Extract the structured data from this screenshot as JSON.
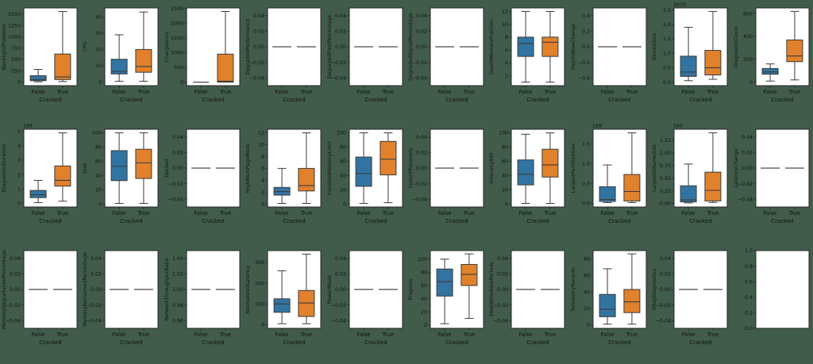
{
  "figure": {
    "xlabel": "Cracked",
    "categories": [
      "False",
      "True"
    ],
    "background": "#415C4B",
    "axes_background": "#FFFFFF",
    "frame_color": "#262626",
    "box_color_false": "#3274A1",
    "box_color_true": "#E1812C",
    "edge_color": "#3B3B3B",
    "flat_line_color": "#4A4A4A",
    "rows": 3,
    "cols": 10
  },
  "chart_data": {
    "type": "box",
    "group_by": "Cracked",
    "groups": [
      "False",
      "True"
    ],
    "legend_position": "none",
    "grid": "off",
    "subplots": [
      {
        "ylabel": "BacklightProblems",
        "offset": "",
        "kind": "box",
        "ytick_vals": [
          0,
          250,
          500,
          750,
          1000,
          1250,
          1500
        ],
        "ytick_labels": [
          "0",
          "250",
          "500",
          "750",
          "1000",
          "1250",
          "1500"
        ],
        "ylim": [
          -80,
          1640
        ],
        "false": {
          "whislo": 5,
          "q1": 30,
          "med": 55,
          "q3": 140,
          "whishi": 280
        },
        "true": {
          "whislo": 10,
          "q1": 55,
          "med": 115,
          "q3": 620,
          "whishi": 1560
        }
      },
      {
        "ylabel": "CPU",
        "offset": "",
        "kind": "box",
        "ytick_vals": [
          0,
          10,
          20,
          30,
          40
        ],
        "ytick_labels": [
          "0",
          "10",
          "20",
          "30",
          "40"
        ],
        "ylim": [
          -2.2,
          45.5
        ],
        "false": {
          "whislo": 0.5,
          "q1": 5,
          "med": 6.5,
          "q3": 14,
          "whishi": 29
        },
        "true": {
          "whislo": 0.5,
          "q1": 6,
          "med": 9.5,
          "q3": 20,
          "whishi": 43
        }
      },
      {
        "ylabel": "ChargeUnits",
        "offset": "",
        "kind": "box",
        "ytick_vals": [
          0,
          500,
          1000,
          1500,
          2000,
          2500
        ],
        "ytick_labels": [
          "0",
          "500",
          "1000",
          "1500",
          "2000",
          "2500"
        ],
        "ylim": [
          -120,
          2520
        ],
        "false": {
          "whislo": 0,
          "q1": 0,
          "med": 0,
          "q3": 0,
          "whishi": 0
        },
        "true": {
          "whislo": 0,
          "q1": 0,
          "med": 30,
          "q3": 950,
          "whishi": 2400
        }
      },
      {
        "ylabel": "DegradedPerformance",
        "offset": "",
        "kind": "flat",
        "flat": 0,
        "ytick_vals": [
          0.04,
          0.02,
          0,
          -0.02,
          -0.04
        ],
        "ytick_labels": [
          "0.04",
          "0.02",
          "0.00",
          "−0.02",
          "−0.04"
        ],
        "ylim": [
          -0.05,
          0.05
        ]
      },
      {
        "ylabel": "DegradedPixelPercentage",
        "offset": "",
        "kind": "flat",
        "flat": 0,
        "ytick_vals": [
          0.04,
          0.02,
          0,
          -0.02,
          -0.04
        ],
        "ytick_labels": [
          "0.04",
          "0.02",
          "0.00",
          "−0.02",
          "−0.04"
        ],
        "ylim": [
          -0.05,
          0.05
        ]
      },
      {
        "ylabel": "DegradedSignalPercentage",
        "offset": "",
        "kind": "flat",
        "flat": 0,
        "ytick_vals": [
          0.04,
          0.02,
          0,
          -0.02,
          -0.04
        ],
        "ytick_labels": [
          "0.04",
          "0.02",
          "0.00",
          "−0.02",
          "−0.04"
        ],
        "ylim": [
          -0.05,
          0.05
        ]
      },
      {
        "ylabel": "DepthMemoryFraction",
        "offset": "",
        "kind": "box",
        "ytick_vals": [
          2,
          4,
          6,
          8,
          10,
          12
        ],
        "ytick_labels": [
          "2",
          "4",
          "6",
          "8",
          "10",
          "12"
        ],
        "ylim": [
          0.45,
          12.55
        ],
        "false": {
          "whislo": 1,
          "q1": 5,
          "med": 7,
          "q3": 8,
          "whishi": 12
        },
        "true": {
          "whislo": 1,
          "q1": 5,
          "med": 7.2,
          "q3": 8,
          "whishi": 12
        }
      },
      {
        "ylabel": "DepthWiseChange",
        "offset": "",
        "kind": "flat",
        "flat": 0,
        "ytick_vals": [
          0.4,
          0.2,
          0,
          -0.2,
          -0.4
        ],
        "ytick_labels": [
          "0.4",
          "0.2",
          "0.0",
          "−0.2",
          "−0.4"
        ],
        "ylim": [
          -0.5,
          0.5
        ]
      },
      {
        "ylabel": "DeviceSize",
        "offset": "1e10",
        "kind": "box",
        "ytick_vals": [
          0,
          0.5,
          1,
          1.5,
          2,
          2.5
        ],
        "ytick_labels": [
          "0.0",
          "0.5",
          "1.0",
          "1.5",
          "2.0",
          "2.5"
        ],
        "ylim": [
          -0.12,
          2.57
        ],
        "false": {
          "whislo": 0.05,
          "q1": 0.2,
          "med": 0.35,
          "q3": 0.9,
          "whishi": 1.9
        },
        "true": {
          "whislo": 0.1,
          "q1": 0.25,
          "med": 0.5,
          "q3": 1.1,
          "whishi": 2.45
        }
      },
      {
        "ylabel": "DiagnosticCount",
        "offset": "",
        "kind": "box",
        "ytick_vals": [
          0,
          200,
          400,
          600
        ],
        "ytick_labels": [
          "0",
          "200",
          "400",
          "600"
        ],
        "ylim": [
          -30,
          650
        ],
        "false": {
          "whislo": 10,
          "q1": 70,
          "med": 90,
          "q3": 120,
          "whishi": 160
        },
        "true": {
          "whislo": 20,
          "q1": 180,
          "med": 230,
          "q3": 370,
          "whishi": 620
        }
      },
      {
        "ylabel": "DiagnosticDuration",
        "offset": "1e9",
        "kind": "box",
        "ytick_vals": [
          0,
          1,
          2,
          3,
          4,
          5
        ],
        "ytick_labels": [
          "0",
          "1",
          "2",
          "3",
          "4",
          "5"
        ],
        "ylim": [
          -0.25,
          5.15
        ],
        "false": {
          "whislo": 0.05,
          "q1": 0.4,
          "med": 0.6,
          "q3": 0.9,
          "whishi": 1.6
        },
        "true": {
          "whislo": 0.15,
          "q1": 1.2,
          "med": 1.6,
          "q3": 2.6,
          "whishi": 4.9
        }
      },
      {
        "ylabel": "Disk",
        "offset": "",
        "kind": "box",
        "ytick_vals": [
          0,
          20,
          40,
          60,
          80,
          100
        ],
        "ytick_labels": [
          "0",
          "20",
          "40",
          "60",
          "80",
          "100"
        ],
        "ylim": [
          -4,
          105
        ],
        "false": {
          "whislo": 1,
          "q1": 33,
          "med": 53,
          "q3": 75,
          "whishi": 100
        },
        "true": {
          "whislo": 1,
          "q1": 36,
          "med": 58,
          "q3": 77,
          "whishi": 100
        }
      },
      {
        "ylabel": "Docked",
        "offset": "",
        "kind": "flat",
        "flat": 0,
        "ytick_vals": [
          0.04,
          0.02,
          0,
          -0.02,
          -0.04
        ],
        "ytick_labels": [
          "0.04",
          "0.02",
          "0.00",
          "−0.02",
          "−0.04"
        ],
        "ylim": [
          -0.05,
          0.05
        ]
      },
      {
        "ylabel": "HighMemPageMode",
        "offset": "",
        "kind": "box",
        "ytick_vals": [
          0,
          2,
          4,
          6,
          8,
          10,
          12
        ],
        "ytick_labels": [
          "0",
          "2",
          "4",
          "6",
          "8",
          "10",
          "12"
        ],
        "ylim": [
          -0.5,
          12.6
        ],
        "false": {
          "whislo": 0.1,
          "q1": 1.5,
          "med": 2.1,
          "q3": 2.8,
          "whishi": 6
        },
        "true": {
          "whislo": 0.1,
          "q1": 2.2,
          "med": 3.1,
          "q3": 6,
          "whishi": 12
        }
      },
      {
        "ylabel": "InstalledMemoryLimit",
        "offset": "",
        "kind": "box",
        "ytick_vals": [
          0,
          20,
          40,
          60,
          80,
          100
        ],
        "ytick_labels": [
          "0",
          "20",
          "40",
          "60",
          "80",
          "100"
        ],
        "ylim": [
          -4,
          105
        ],
        "false": {
          "whislo": 1,
          "q1": 25,
          "med": 43,
          "q3": 66,
          "whishi": 100
        },
        "true": {
          "whislo": 2,
          "q1": 41,
          "med": 63,
          "q3": 88,
          "whishi": 100
        }
      },
      {
        "ylabel": "InstantRecovery",
        "offset": "",
        "kind": "flat",
        "flat": 0,
        "ytick_vals": [
          0.04,
          0.02,
          0,
          -0.02,
          -0.04
        ],
        "ytick_labels": [
          "0.04",
          "0.02",
          "0.00",
          "−0.02",
          "−0.04"
        ],
        "ylim": [
          -0.05,
          0.05
        ]
      },
      {
        "ylabel": "IntensityROI",
        "offset": "",
        "kind": "box",
        "ytick_vals": [
          0,
          20,
          40,
          60,
          80,
          100
        ],
        "ytick_labels": [
          "0",
          "20",
          "40",
          "60",
          "80",
          "100"
        ],
        "ylim": [
          -4,
          105
        ],
        "false": {
          "whislo": 1,
          "q1": 27,
          "med": 42,
          "q3": 62,
          "whishi": 98
        },
        "true": {
          "whislo": 1,
          "q1": 38,
          "med": 55,
          "q3": 77,
          "whishi": 100
        }
      },
      {
        "ylabel": "LargestPartitionSize",
        "offset": "1e9",
        "kind": "box",
        "ytick_vals": [
          0,
          0.5,
          1,
          1.5
        ],
        "ytick_labels": [
          "0.0",
          "0.5",
          "1.0",
          "1.5"
        ],
        "ylim": [
          -0.09,
          1.87
        ],
        "false": {
          "whislo": 0.02,
          "q1": 0.05,
          "med": 0.1,
          "q3": 0.42,
          "whishi": 0.97
        },
        "true": {
          "whislo": 0.02,
          "q1": 0.06,
          "med": 0.3,
          "q3": 0.73,
          "whishi": 1.78
        }
      },
      {
        "ylabel": "LargestVolumeSize",
        "offset": "1e9",
        "kind": "box",
        "ytick_vals": [
          0,
          0.25,
          0.5,
          0.75,
          1,
          1.25
        ],
        "ytick_labels": [
          "0.00",
          "0.25",
          "0.50",
          "0.75",
          "1.00",
          "1.25"
        ],
        "ylim": [
          -0.07,
          1.47
        ],
        "false": {
          "whislo": 0.01,
          "q1": 0.03,
          "med": 0.07,
          "q3": 0.35,
          "whishi": 0.78
        },
        "true": {
          "whislo": 0.02,
          "q1": 0.05,
          "med": 0.26,
          "q3": 0.62,
          "whishi": 1.4
        }
      },
      {
        "ylabel": "LatencyChange",
        "offset": "",
        "kind": "flat",
        "flat": 0,
        "ytick_vals": [
          0.04,
          0.02,
          0,
          -0.02,
          -0.04
        ],
        "ytick_labels": [
          "0.04",
          "0.02",
          "0.00",
          "−0.02",
          "−0.04"
        ],
        "ylim": [
          -0.05,
          0.05
        ]
      },
      {
        "ylabel": "MemoryDegradationPercentage",
        "offset": "",
        "kind": "flat",
        "flat": 0,
        "ytick_vals": [
          0.04,
          0.02,
          0,
          -0.02,
          -0.04
        ],
        "ytick_labels": [
          "0.04",
          "0.02",
          "0.00",
          "−0.02",
          "−0.04"
        ],
        "ylim": [
          -0.05,
          0.05
        ]
      },
      {
        "ylabel": "MemoryReclaimedPercentage",
        "offset": "",
        "kind": "flat",
        "flat": 0,
        "ytick_vals": [
          0.04,
          0.02,
          0,
          -0.02,
          -0.04
        ],
        "ytick_labels": [
          "0.04",
          "0.02",
          "0.00",
          "−0.02",
          "−0.04"
        ],
        "ylim": [
          -0.05,
          0.05
        ]
      },
      {
        "ylabel": "NetworkThroughputRatio",
        "offset": "",
        "kind": "flat",
        "flat": 1,
        "ytick_vals": [
          1.04,
          1.02,
          1,
          0.98,
          0.96
        ],
        "ytick_labels": [
          "1.04",
          "1.02",
          "1.00",
          "0.98",
          "0.96"
        ],
        "ylim": [
          0.95,
          1.05
        ]
      },
      {
        "ylabel": "NormalizedLatency",
        "offset": "",
        "kind": "box",
        "ytick_vals": [
          0,
          100,
          200,
          300
        ],
        "ytick_labels": [
          "0",
          "100",
          "200",
          "300"
        ],
        "ylim": [
          -17,
          357
        ],
        "false": {
          "whislo": 5,
          "q1": 60,
          "med": 100,
          "q3": 125,
          "whishi": 260
        },
        "true": {
          "whislo": 5,
          "q1": 40,
          "med": 105,
          "q3": 165,
          "whishi": 340
        }
      },
      {
        "ylabel": "PowerMode",
        "offset": "",
        "kind": "flat",
        "flat": 0,
        "ytick_vals": [
          0.04,
          0.02,
          0,
          -0.02,
          -0.04
        ],
        "ytick_labels": [
          "0.04",
          "0.02",
          "0.00",
          "−0.02",
          "−0.04"
        ],
        "ylim": [
          -0.05,
          0.05
        ]
      },
      {
        "ylabel": "Progress",
        "offset": "",
        "kind": "box",
        "ytick_vals": [
          0,
          20,
          40,
          60,
          80,
          100
        ],
        "ytick_labels": [
          "0",
          "20",
          "40",
          "60",
          "80",
          "100"
        ],
        "ylim": [
          -5,
          113
        ],
        "false": {
          "whislo": 2,
          "q1": 44,
          "med": 66,
          "q3": 85,
          "whishi": 100
        },
        "true": {
          "whislo": 10,
          "q1": 60,
          "med": 77,
          "q3": 92,
          "whishi": 108
        }
      },
      {
        "ylabel": "SlowWriteRatePeriods",
        "offset": "",
        "kind": "flat",
        "flat": 0,
        "ytick_vals": [
          0.04,
          0.02,
          0,
          -0.02,
          -0.04
        ],
        "ytick_labels": [
          "0.04",
          "0.02",
          "0.00",
          "−0.02",
          "−0.04"
        ],
        "ylim": [
          -0.05,
          0.05
        ]
      },
      {
        "ylabel": "TelemetryRecords",
        "offset": "",
        "kind": "box",
        "ytick_vals": [
          0,
          20,
          40,
          60,
          80
        ],
        "ytick_labels": [
          "0",
          "20",
          "40",
          "60",
          "80"
        ],
        "ylim": [
          -4,
          90
        ],
        "false": {
          "whislo": 1,
          "q1": 10,
          "med": 19,
          "q3": 37,
          "whishi": 68
        },
        "true": {
          "whislo": 1,
          "q1": 15,
          "med": 28,
          "q3": 43,
          "whishi": 86
        }
      },
      {
        "ylabel": "XRayDiagnostics",
        "offset": "",
        "kind": "flat",
        "flat": 0,
        "ytick_vals": [
          0.04,
          0.02,
          0,
          -0.02,
          -0.04
        ],
        "ytick_labels": [
          "0.04",
          "0.02",
          "0.00",
          "−0.02",
          "−0.04"
        ],
        "ylim": [
          -0.05,
          0.05
        ]
      },
      {
        "ylabel": "",
        "offset": "",
        "kind": "empty",
        "ytick_vals": [
          1,
          0.8,
          0.6,
          0.4,
          0.2,
          0
        ],
        "ytick_labels": [
          "1.0",
          "0.8",
          "0.6",
          "0.4",
          "0.2",
          "0.0"
        ],
        "ylim": [
          0,
          1
        ]
      }
    ]
  }
}
